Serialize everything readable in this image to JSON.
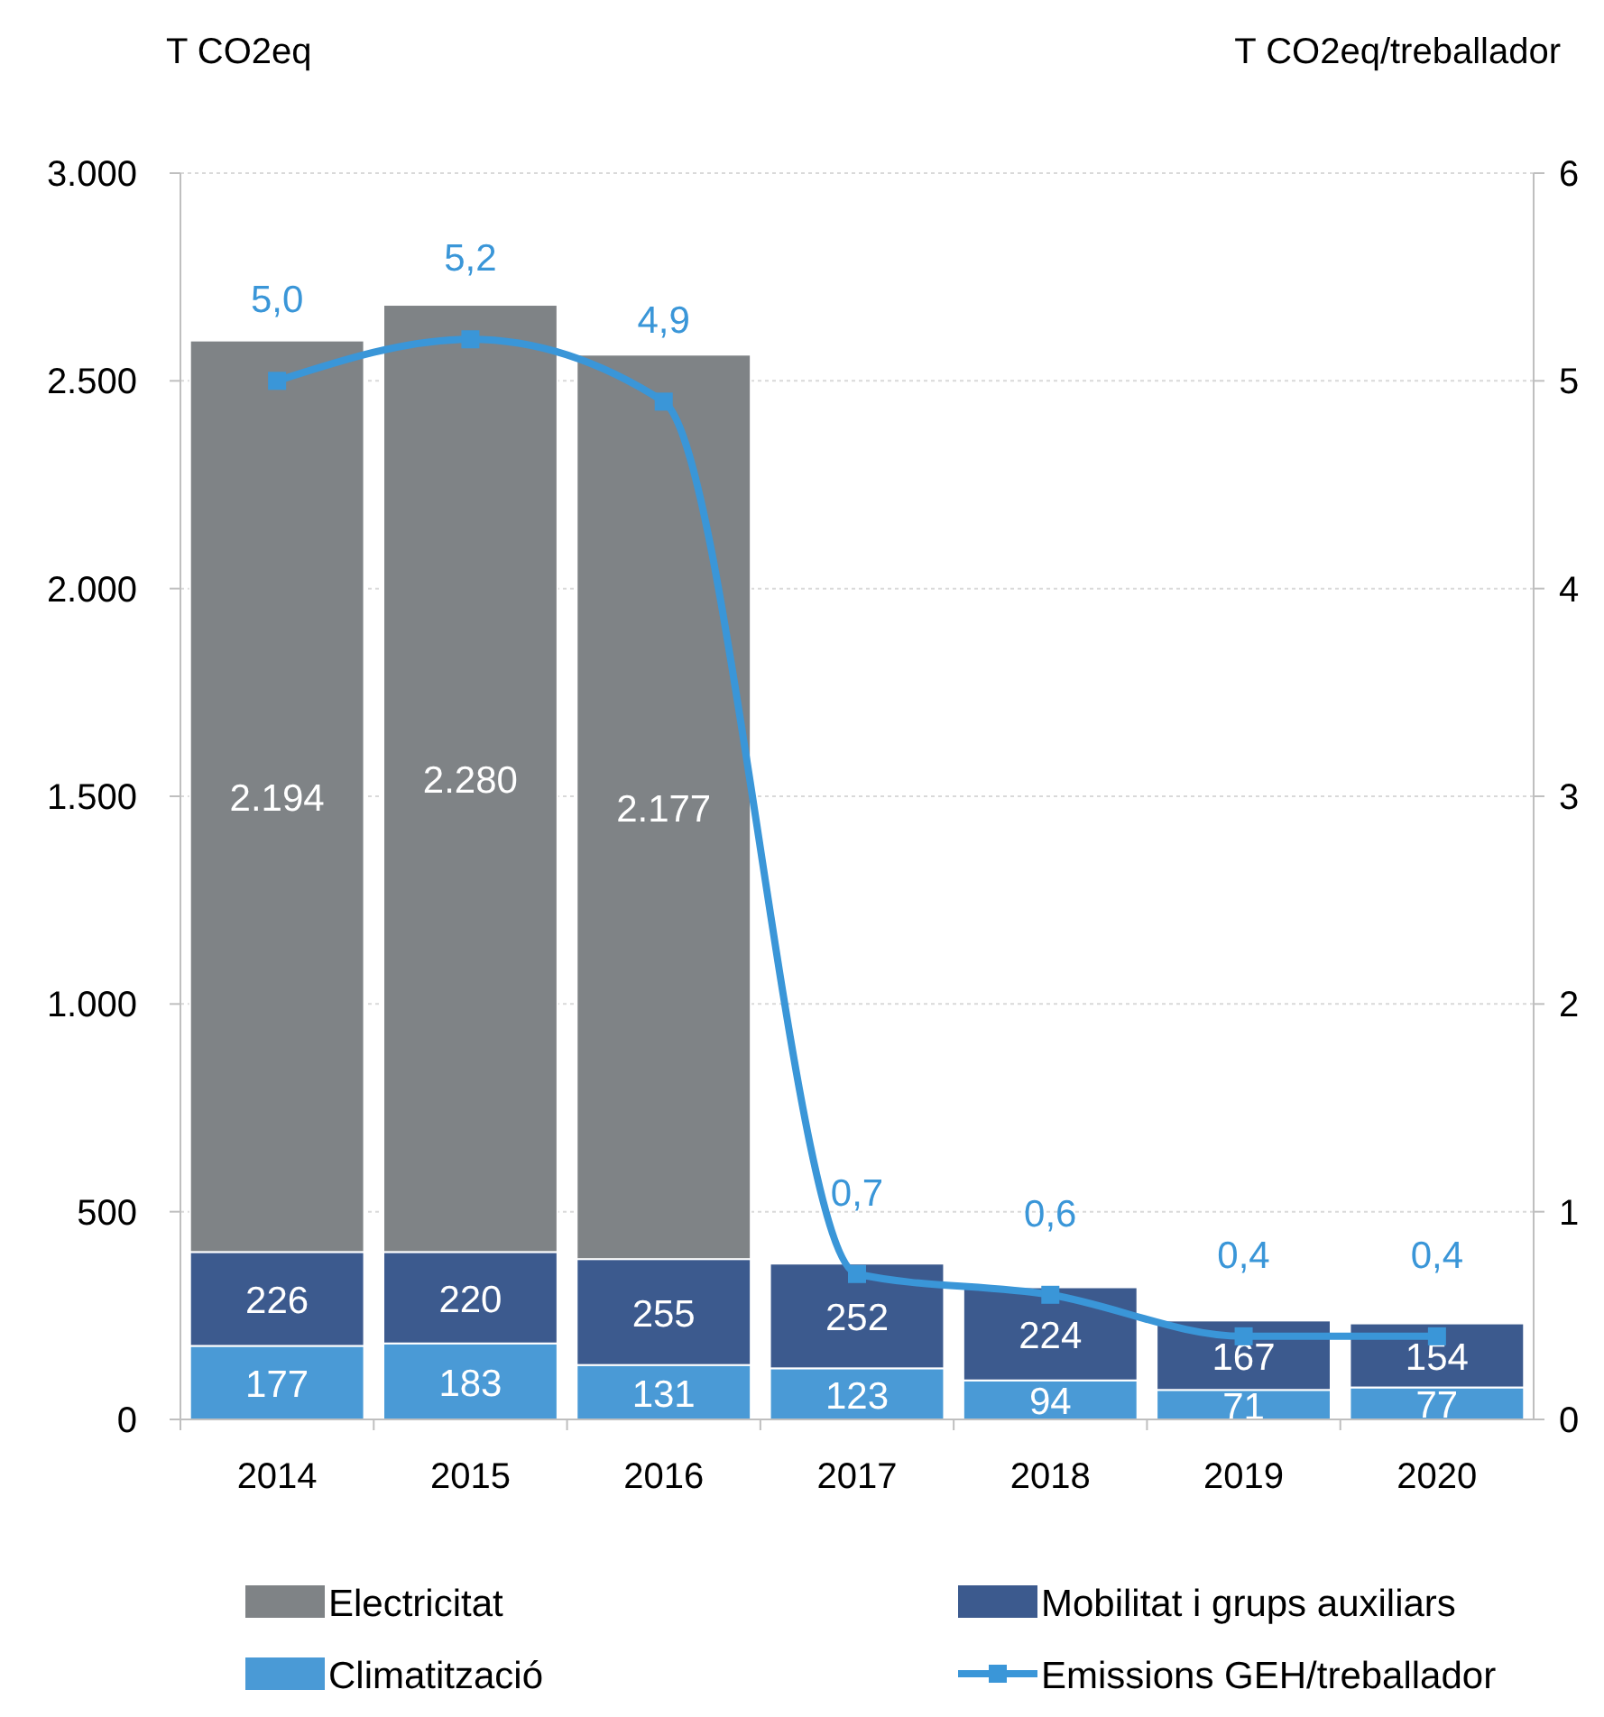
{
  "chart_data": {
    "type": "bar",
    "stacked": true,
    "categories": [
      "2014",
      "2015",
      "2016",
      "2017",
      "2018",
      "2019",
      "2020"
    ],
    "ylabel": "T CO2eq",
    "y2label": "T CO2eq/treballador",
    "ylim": [
      0,
      3000
    ],
    "yticks": [
      0,
      {
        "value": 500,
        "label": "500"
      },
      {
        "value": 1000,
        "label": "1.000"
      },
      {
        "value": 1500,
        "label": "1.500"
      },
      {
        "value": 2000,
        "label": "2.000"
      },
      {
        "value": 2500,
        "label": "2.500"
      },
      {
        "value": 3000,
        "label": "3.000"
      }
    ],
    "y2lim": [
      0,
      6
    ],
    "y2ticks": [
      0,
      1,
      2,
      3,
      4,
      5,
      6
    ],
    "grid": "y",
    "legend": "bottom",
    "series": [
      {
        "name": "Climatització",
        "color": "#4a9ad6",
        "values": [
          177,
          183,
          131,
          123,
          94,
          71,
          77
        ],
        "value_labels": [
          "177",
          "183",
          "131",
          "123",
          "94",
          "71",
          "77"
        ]
      },
      {
        "name": "Mobilitat i grups auxiliars",
        "color": "#3c5a8e",
        "values": [
          226,
          220,
          255,
          252,
          224,
          167,
          154
        ],
        "value_labels": [
          "226",
          "220",
          "255",
          "252",
          "224",
          "167",
          "154"
        ]
      },
      {
        "name": "Electricitat",
        "color": "#7f8386",
        "values": [
          2194,
          2280,
          2177,
          null,
          null,
          null,
          null
        ],
        "value_labels": [
          "2.194",
          "2.280",
          "2.177",
          null,
          null,
          null,
          null
        ]
      },
      {
        "name": "Emissions GEH/treballador",
        "type": "line",
        "axis": "y2",
        "color": "#3a96d8",
        "marker": "square",
        "line_style": "solid",
        "values": [
          5.0,
          5.2,
          4.9,
          0.7,
          0.6,
          0.4,
          0.4
        ],
        "value_labels": [
          "5,0",
          "5,2",
          "4,9",
          "0,7",
          "0,6",
          "0,4",
          "0,4"
        ]
      }
    ]
  }
}
